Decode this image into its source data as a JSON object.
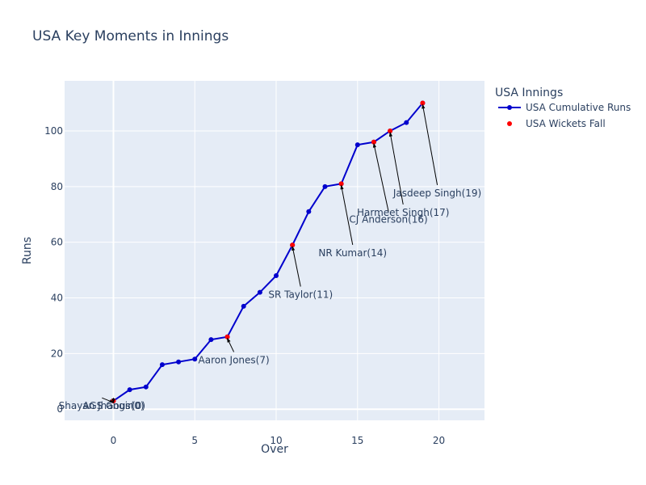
{
  "chart_data": {
    "type": "line",
    "title": "USA Key Moments in Innings",
    "xlabel": "Over",
    "ylabel": "Runs",
    "xlim": [
      -3,
      22.8
    ],
    "ylim": [
      -4,
      118
    ],
    "xticks": [
      0,
      5,
      10,
      15,
      20
    ],
    "yticks": [
      0,
      20,
      40,
      60,
      80,
      100
    ],
    "grid": true,
    "legend": {
      "title": "USA Innings",
      "position": "top-right",
      "entries": [
        "USA Cumulative Runs",
        "USA Wickets Fall"
      ]
    },
    "series": [
      {
        "name": "USA Cumulative Runs",
        "mode": "lines+markers",
        "color": "#0000CD",
        "x": [
          0,
          1,
          2,
          3,
          4,
          5,
          6,
          7,
          8,
          9,
          10,
          11,
          12,
          13,
          14,
          15,
          16,
          17,
          18,
          19
        ],
        "y": [
          3,
          7,
          8,
          16,
          17,
          18,
          25,
          26,
          37,
          42,
          48,
          59,
          71,
          80,
          81,
          95,
          96,
          100,
          103,
          110
        ]
      },
      {
        "name": "USA Wickets Fall",
        "mode": "markers",
        "color": "#FF0000",
        "x": [
          0,
          0,
          7,
          11,
          14,
          16,
          17,
          19
        ],
        "y": [
          3,
          3,
          26,
          59,
          81,
          96,
          100,
          110
        ]
      }
    ],
    "annotations": [
      {
        "text": "Shayan Jhangir(0)",
        "x": 0,
        "y": 3,
        "label_x": -0.7,
        "label_y": 0
      },
      {
        "text": "AGS Gous(0)",
        "x": 0,
        "y": 3,
        "label_x": 0,
        "label_y": 0
      },
      {
        "text": "Aaron Jones(7)",
        "x": 7,
        "y": 26,
        "label_x": 7.4,
        "label_y": 16.5
      },
      {
        "text": "SR Taylor(11)",
        "x": 11,
        "y": 59,
        "label_x": 11.5,
        "label_y": 40
      },
      {
        "text": "NR Kumar(14)",
        "x": 14,
        "y": 81,
        "label_x": 14.7,
        "label_y": 55
      },
      {
        "text": "CJ Anderson(16)",
        "x": 16,
        "y": 96,
        "label_x": 16.9,
        "label_y": 67
      },
      {
        "text": "Harmeet Singh(17)",
        "x": 17,
        "y": 100,
        "label_x": 17.8,
        "label_y": 69.5
      },
      {
        "text": "Jasdeep Singh(19)",
        "x": 19,
        "y": 110,
        "label_x": 19.9,
        "label_y": 76.5
      }
    ]
  }
}
